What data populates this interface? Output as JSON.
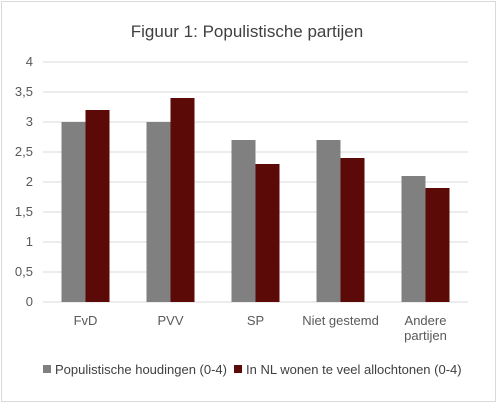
{
  "chart_data": {
    "type": "bar",
    "title": "Figuur 1: Populistische partijen",
    "categories": [
      [
        "FvD"
      ],
      [
        "PVV"
      ],
      [
        "SP"
      ],
      [
        "Niet gestemd"
      ],
      [
        "Andere",
        "partijen"
      ]
    ],
    "series": [
      {
        "name": "Populistische houdingen (0-4)",
        "color": "#808080",
        "values": [
          3.0,
          3.0,
          2.7,
          2.7,
          2.1
        ]
      },
      {
        "name": "In NL wonen te veel allochtonen (0-4)",
        "color": "#5c0a07",
        "values": [
          3.2,
          3.4,
          2.3,
          2.4,
          1.9
        ]
      }
    ],
    "ylim": [
      0,
      4
    ],
    "yticks": [
      0,
      0.5,
      1,
      1.5,
      2,
      2.5,
      3,
      3.5,
      4
    ],
    "ytick_labels": [
      "0",
      "0,5",
      "1",
      "1,5",
      "2",
      "2,5",
      "3",
      "3,5",
      "4"
    ],
    "grid": true,
    "legend": "bottom"
  }
}
